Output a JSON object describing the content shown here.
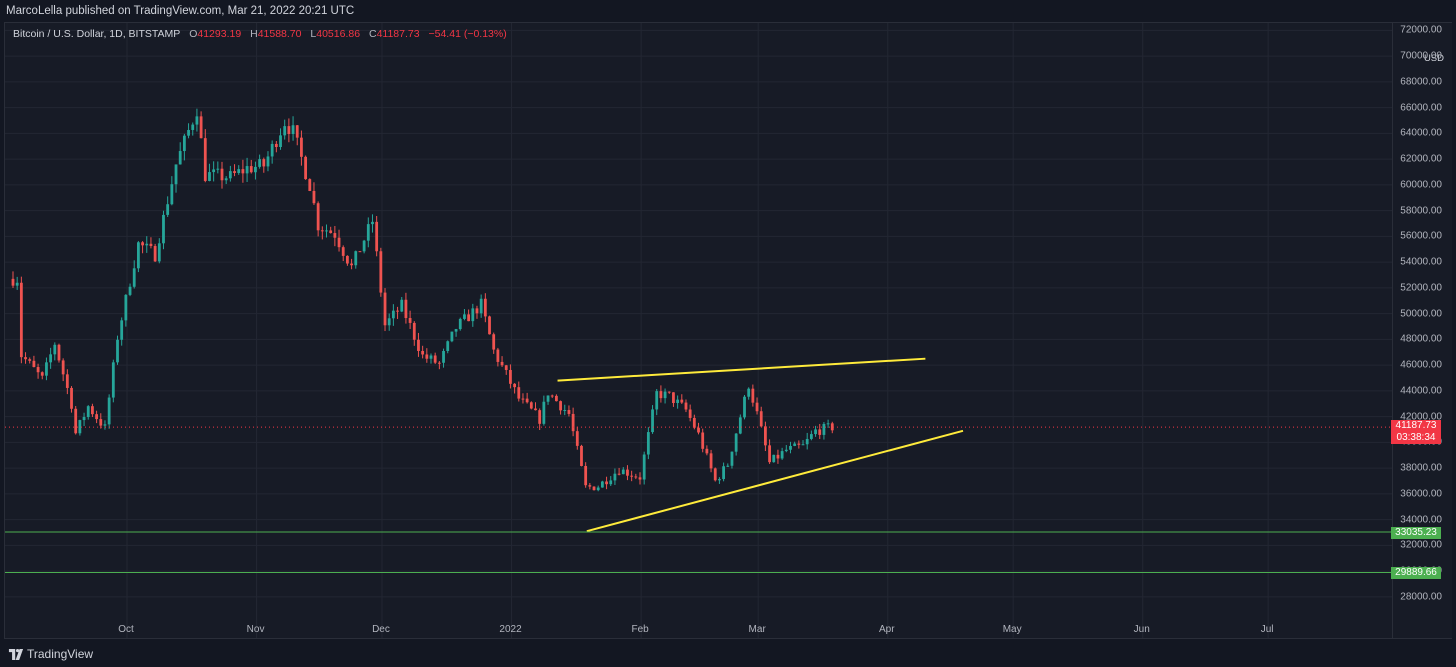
{
  "header": {
    "published_by": "MarcoLella published on TradingView.com, Mar 21, 2022 20:21 UTC"
  },
  "legend": {
    "symbol": "Bitcoin / U.S. Dollar, 1D, BITSTAMP",
    "open_label": "O",
    "open": "41293.19",
    "high_label": "H",
    "high": "41588.70",
    "low_label": "L",
    "low": "40516.86",
    "close_label": "C",
    "close": "41187.73",
    "change": "−54.41 (−0.13%)"
  },
  "price_axis": {
    "currency": "USD",
    "ticks": [
      "72000.00",
      "70000.00",
      "68000.00",
      "66000.00",
      "64000.00",
      "62000.00",
      "60000.00",
      "58000.00",
      "56000.00",
      "54000.00",
      "52000.00",
      "50000.00",
      "48000.00",
      "46000.00",
      "44000.00",
      "42000.00",
      "40000.00",
      "38000.00",
      "36000.00",
      "34000.00",
      "32000.00",
      "30000.00",
      "28000.00"
    ]
  },
  "badges": {
    "last_price": "41187.73",
    "countdown": "03:38:34",
    "level_1": "33035.23",
    "level_2": "29889.66"
  },
  "time_axis": {
    "ticks": [
      "Oct",
      "Nov",
      "Dec",
      "2022",
      "Feb",
      "Mar",
      "Apr",
      "May",
      "Jun",
      "Jul"
    ]
  },
  "footer": {
    "brand": "TradingView"
  },
  "colors": {
    "background": "#131722",
    "up": "#26a69a",
    "down": "#ef5350",
    "trendline": "#ffeb3b",
    "hline": "#4caf50",
    "last_price": "#f23645"
  },
  "chart_data": {
    "type": "candlestick",
    "timeframe": "1D",
    "ylim": [
      26500,
      72500
    ],
    "series": [
      {
        "name": "price",
        "points": [
          {
            "date": "2021-09-07",
            "price": 52700
          },
          {
            "date": "2021-09-08",
            "price": 46800
          },
          {
            "date": "2021-09-13",
            "price": 44900
          },
          {
            "date": "2021-09-16",
            "price": 47700
          },
          {
            "date": "2021-09-20",
            "price": 43000
          },
          {
            "date": "2021-09-21",
            "price": 40700
          },
          {
            "date": "2021-09-24",
            "price": 42800
          },
          {
            "date": "2021-09-28",
            "price": 41100
          },
          {
            "date": "2021-10-01",
            "price": 48200
          },
          {
            "date": "2021-10-06",
            "price": 55400
          },
          {
            "date": "2021-10-10",
            "price": 54600
          },
          {
            "date": "2021-10-15",
            "price": 61600
          },
          {
            "date": "2021-10-20",
            "price": 65900
          },
          {
            "date": "2021-10-22",
            "price": 60800
          },
          {
            "date": "2021-10-28",
            "price": 60600
          },
          {
            "date": "2021-11-01",
            "price": 61300
          },
          {
            "date": "2021-11-05",
            "price": 61500
          },
          {
            "date": "2021-11-10",
            "price": 64900
          },
          {
            "date": "2021-11-12",
            "price": 64100
          },
          {
            "date": "2021-11-16",
            "price": 60000
          },
          {
            "date": "2021-11-18",
            "price": 56900
          },
          {
            "date": "2021-11-22",
            "price": 56200
          },
          {
            "date": "2021-11-26",
            "price": 53600
          },
          {
            "date": "2021-12-01",
            "price": 57200
          },
          {
            "date": "2021-12-04",
            "price": 49100
          },
          {
            "date": "2021-12-08",
            "price": 50600
          },
          {
            "date": "2021-12-13",
            "price": 46700
          },
          {
            "date": "2021-12-17",
            "price": 46100
          },
          {
            "date": "2021-12-21",
            "price": 48900
          },
          {
            "date": "2021-12-27",
            "price": 50700
          },
          {
            "date": "2021-12-30",
            "price": 47100
          },
          {
            "date": "2022-01-05",
            "price": 43400
          },
          {
            "date": "2022-01-10",
            "price": 41800
          },
          {
            "date": "2022-01-12",
            "price": 43900
          },
          {
            "date": "2022-01-17",
            "price": 42200
          },
          {
            "date": "2022-01-21",
            "price": 36500
          },
          {
            "date": "2022-01-24",
            "price": 36600
          },
          {
            "date": "2022-01-29",
            "price": 37900
          },
          {
            "date": "2022-02-03",
            "price": 37300
          },
          {
            "date": "2022-02-07",
            "price": 43800
          },
          {
            "date": "2022-02-10",
            "price": 43600
          },
          {
            "date": "2022-02-14",
            "price": 42500
          },
          {
            "date": "2022-02-17",
            "price": 40600
          },
          {
            "date": "2022-02-21",
            "price": 37000
          },
          {
            "date": "2022-02-24",
            "price": 38300
          },
          {
            "date": "2022-03-01",
            "price": 44500
          },
          {
            "date": "2022-03-03",
            "price": 42200
          },
          {
            "date": "2022-03-06",
            "price": 38400
          },
          {
            "date": "2022-03-10",
            "price": 39400
          },
          {
            "date": "2022-03-14",
            "price": 39700
          },
          {
            "date": "2022-03-17",
            "price": 40900
          },
          {
            "date": "2022-03-21",
            "price": 41187
          }
        ]
      }
    ],
    "drawings": [
      {
        "kind": "trendline",
        "from": {
          "date": "2022-01-12",
          "price": 44800
        },
        "to": {
          "date": "2022-04-10",
          "price": 46500
        }
      },
      {
        "kind": "trendline",
        "from": {
          "date": "2022-01-19",
          "price": 33100
        },
        "to": {
          "date": "2022-04-19",
          "price": 40900
        }
      },
      {
        "kind": "horizontal",
        "price": 33035.23
      },
      {
        "kind": "horizontal",
        "price": 29889.66
      }
    ]
  }
}
